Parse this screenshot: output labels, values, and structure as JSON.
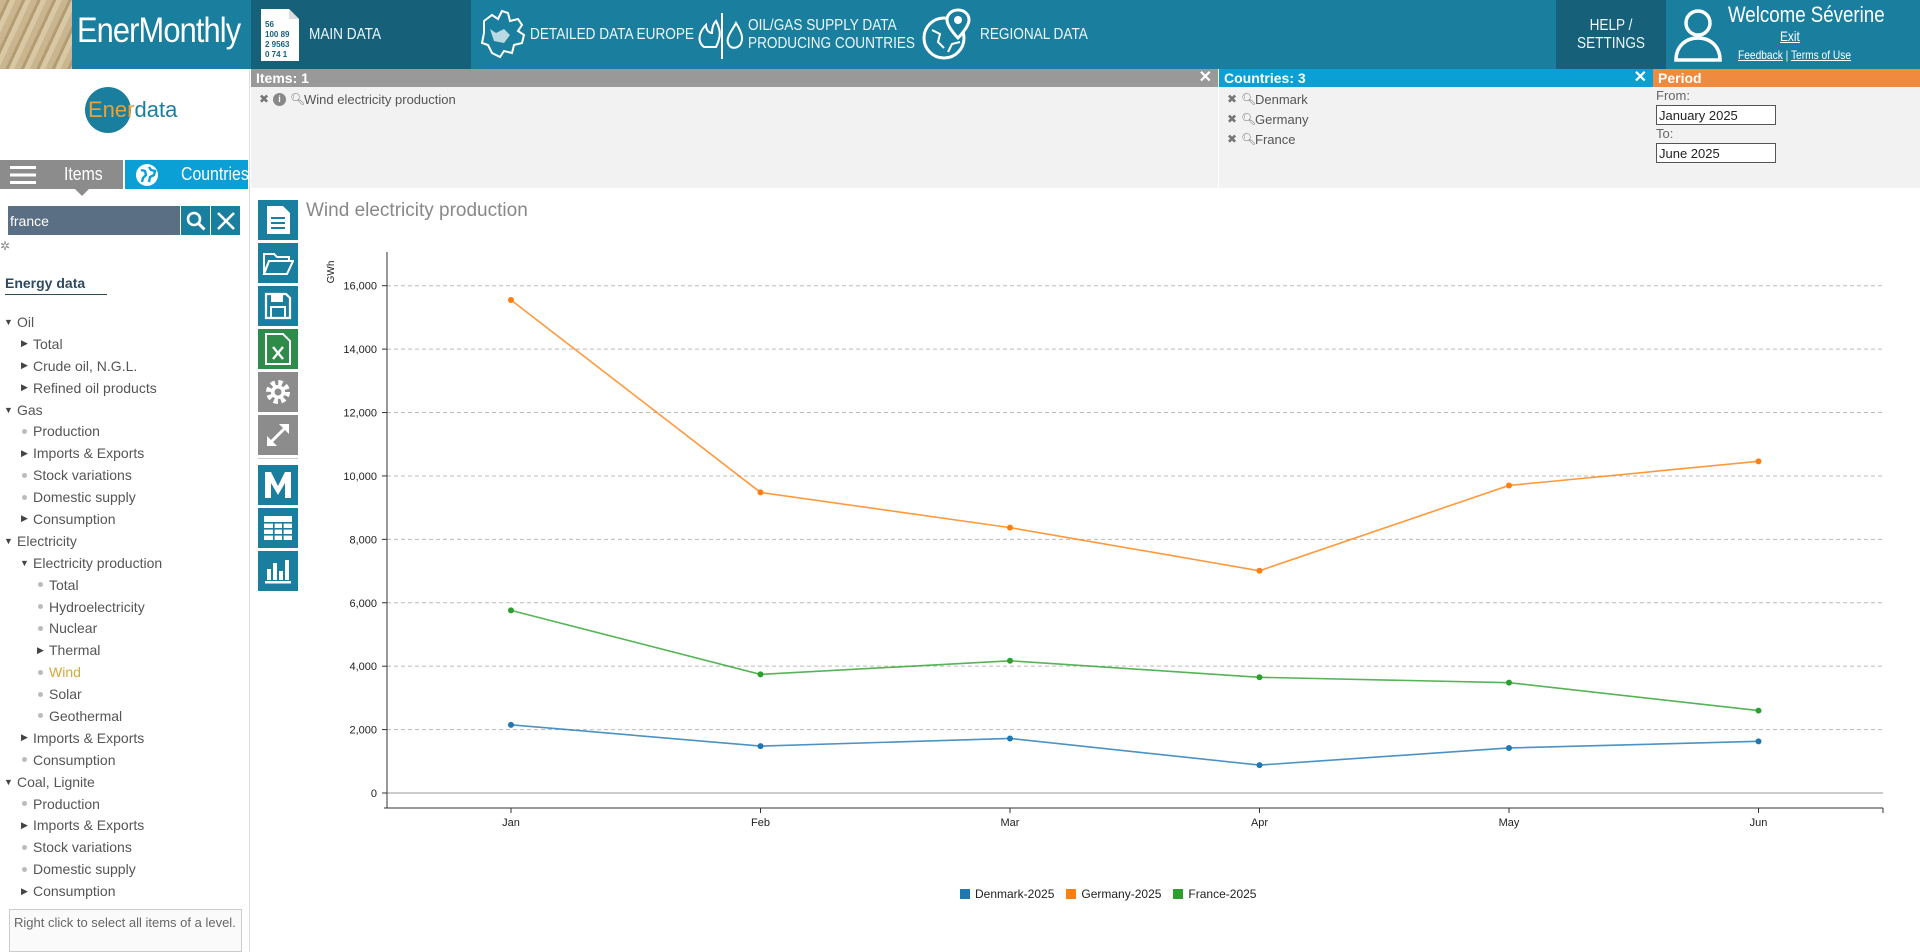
{
  "header": {
    "brand": "EnerMonthly",
    "nav": [
      {
        "label": "MAIN DATA"
      },
      {
        "label": "DETAILED DATA EUROPE"
      },
      {
        "label_line1": "OIL/GAS SUPPLY DATA",
        "label_line2": "PRODUCING COUNTRIES"
      },
      {
        "label": "REGIONAL DATA"
      }
    ],
    "help_line1": "HELP /",
    "help_line2": "SETTINGS",
    "welcome": "Welcome Séverine",
    "exit": "Exit",
    "feedback": "Feedback",
    "separator": "|",
    "terms": "Terms of Use"
  },
  "sidebar": {
    "logo_part1": "Ener",
    "logo_part2": "data",
    "tab_items": "Items",
    "tab_countries": "Countries",
    "search_value": "france",
    "section_title": "Energy data",
    "tree": [
      {
        "label": "Oil",
        "level": 0,
        "marker": "open"
      },
      {
        "label": "Total",
        "level": 1,
        "marker": "closed"
      },
      {
        "label": "Crude oil, N.G.L.",
        "level": 1,
        "marker": "closed"
      },
      {
        "label": "Refined oil products",
        "level": 1,
        "marker": "closed"
      },
      {
        "label": "Gas",
        "level": 0,
        "marker": "open"
      },
      {
        "label": "Production",
        "level": 1,
        "marker": "dot"
      },
      {
        "label": "Imports & Exports",
        "level": 1,
        "marker": "closed"
      },
      {
        "label": "Stock variations",
        "level": 1,
        "marker": "dot"
      },
      {
        "label": "Domestic supply",
        "level": 1,
        "marker": "dot"
      },
      {
        "label": "Consumption",
        "level": 1,
        "marker": "closed"
      },
      {
        "label": "Electricity",
        "level": 0,
        "marker": "open"
      },
      {
        "label": "Electricity production",
        "level": 1,
        "marker": "open"
      },
      {
        "label": "Total",
        "level": 2,
        "marker": "dot"
      },
      {
        "label": "Hydroelectricity",
        "level": 2,
        "marker": "dot"
      },
      {
        "label": "Nuclear",
        "level": 2,
        "marker": "dot"
      },
      {
        "label": "Thermal",
        "level": 2,
        "marker": "closed"
      },
      {
        "label": "Wind",
        "level": 2,
        "marker": "dot",
        "active": true
      },
      {
        "label": "Solar",
        "level": 2,
        "marker": "dot"
      },
      {
        "label": "Geothermal",
        "level": 2,
        "marker": "dot"
      },
      {
        "label": "Imports & Exports",
        "level": 1,
        "marker": "closed"
      },
      {
        "label": "Consumption",
        "level": 1,
        "marker": "dot"
      },
      {
        "label": "Coal, Lignite",
        "level": 0,
        "marker": "open"
      },
      {
        "label": "Production",
        "level": 1,
        "marker": "dot"
      },
      {
        "label": "Imports & Exports",
        "level": 1,
        "marker": "closed"
      },
      {
        "label": "Stock variations",
        "level": 1,
        "marker": "dot"
      },
      {
        "label": "Domestic supply",
        "level": 1,
        "marker": "dot"
      },
      {
        "label": "Consumption",
        "level": 1,
        "marker": "closed"
      }
    ],
    "hint": "Right click to select all items of a level."
  },
  "items_panel": {
    "title": "Items: 1",
    "close": "✕",
    "items": [
      "Wind electricity production"
    ]
  },
  "countries_panel": {
    "title": "Countries: 3",
    "close": "✕",
    "countries": [
      "Denmark",
      "Germany",
      "France"
    ]
  },
  "period_panel": {
    "title": "Period",
    "from_label": "From:",
    "from_value": "January 2025",
    "to_label": "To:",
    "to_value": "June 2025"
  },
  "tools": [
    "report-icon",
    "open-folder-icon",
    "save-icon",
    "excel-icon",
    "settings-icon",
    "expand-icon",
    "m-icon",
    "table-icon",
    "bar-chart-icon"
  ],
  "chart_data": {
    "type": "line",
    "title": "Wind electricity production",
    "ylabel": "GWh",
    "categories": [
      "Jan",
      "Feb",
      "Mar",
      "Apr",
      "May",
      "Jun"
    ],
    "y_ticks": [
      "0",
      "2,000",
      "4,000",
      "6,000",
      "8,000",
      "10,000",
      "12,000",
      "14,000",
      "16,000"
    ],
    "ylim": [
      0,
      17000
    ],
    "grid": true,
    "legend": "bottom",
    "series": [
      {
        "name": "Denmark-2025",
        "color": "#1f77b4",
        "values": [
          2150,
          1480,
          1720,
          880,
          1420,
          1630
        ]
      },
      {
        "name": "Germany-2025",
        "color": "#ff7f0e",
        "values": [
          15550,
          9480,
          8370,
          7010,
          9700,
          10460
        ]
      },
      {
        "name": "France-2025",
        "color": "#2ca02c",
        "values": [
          5760,
          3740,
          4170,
          3650,
          3480,
          2600
        ]
      }
    ]
  }
}
